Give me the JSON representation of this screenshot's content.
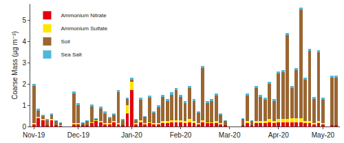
{
  "chart_data": {
    "type": "bar",
    "stacked": true,
    "grid": false,
    "legend": "top-left",
    "y_label": "Coarse Mass (µg m⁻³)",
    "ylim": [
      0,
      5.75
    ],
    "yticks": [
      0,
      1,
      2,
      3,
      4,
      5
    ],
    "categories": [
      "Nov-19",
      null,
      null,
      null,
      null,
      null,
      null,
      null,
      null,
      null,
      "Dec-19",
      null,
      null,
      null,
      null,
      null,
      null,
      null,
      null,
      null,
      null,
      null,
      "Jan-20",
      null,
      null,
      null,
      null,
      null,
      null,
      null,
      null,
      null,
      null,
      "Feb-20",
      null,
      null,
      null,
      null,
      null,
      null,
      null,
      null,
      null,
      null,
      "Mar-20",
      null,
      null,
      null,
      null,
      null,
      null,
      null,
      null,
      null,
      null,
      "Apr-20",
      null,
      null,
      null,
      null,
      null,
      null,
      null,
      null,
      null,
      "May-20",
      null,
      null,
      null
    ],
    "series": [
      {
        "name": "Ammonium Nitrate",
        "color": "#e3000f",
        "values": [
          0.1,
          0.4,
          0.3,
          0.05,
          0.3,
          0.05,
          0.03,
          null,
          null,
          0.1,
          0.1,
          0.05,
          0.05,
          0.15,
          0.25,
          0.2,
          0.1,
          0.1,
          0.2,
          0.1,
          0.05,
          0.6,
          1.7,
          0.1,
          0.2,
          0.1,
          0.15,
          0.1,
          0.1,
          0.15,
          0.15,
          0.2,
          0.2,
          0.2,
          0.15,
          0.2,
          0.15,
          0.1,
          0.2,
          0.15,
          0.15,
          0.15,
          0.1,
          0.05,
          null,
          null,
          null,
          0.05,
          0.15,
          0.05,
          0.15,
          0.15,
          0.15,
          0.2,
          0.15,
          0.2,
          0.2,
          0.2,
          0.2,
          0.2,
          0.2,
          0.15,
          0.15,
          0.1,
          0.15,
          0.1,
          null,
          0.05,
          0.05
        ]
      },
      {
        "name": "Ammonium Sulfate",
        "color": "#ffe600",
        "values": [
          0.05,
          0.05,
          0.05,
          0.02,
          0.05,
          0.02,
          0.02,
          null,
          null,
          0.05,
          0.05,
          0.02,
          0.02,
          0.05,
          0.05,
          0.05,
          0.05,
          0.05,
          0.05,
          0.05,
          0.02,
          0.4,
          0.4,
          0.05,
          0.1,
          0.05,
          0.05,
          0.05,
          0.05,
          0.1,
          0.1,
          0.1,
          0.1,
          0.1,
          0.1,
          0.15,
          0.1,
          0.05,
          0.1,
          0.05,
          0.05,
          0.1,
          0.05,
          0.02,
          null,
          null,
          null,
          0.02,
          0.1,
          0.02,
          0.1,
          0.1,
          0.1,
          0.15,
          0.1,
          0.15,
          0.15,
          0.15,
          0.2,
          0.2,
          0.2,
          0.1,
          0.1,
          0.05,
          0.1,
          0.05,
          null,
          0.02,
          0.02
        ]
      },
      {
        "name": "Soil",
        "color": "#9a6632",
        "values": [
          1.75,
          0.3,
          0.15,
          0.23,
          0.2,
          0.18,
          0.1,
          null,
          null,
          1.4,
          0.85,
          0.08,
          0.18,
          0.75,
          0.05,
          0.6,
          0.45,
          0.25,
          0.3,
          1.45,
          0.23,
          0.3,
          0.1,
          0.15,
          0.95,
          0.3,
          1.15,
          0.5,
          0.75,
          1.15,
          0.95,
          1.2,
          1.4,
          1.1,
          0.85,
          1.45,
          0.95,
          0.5,
          2.45,
          0.9,
          1.0,
          1.2,
          0.4,
          0.18,
          null,
          null,
          null,
          0.28,
          1.2,
          0.18,
          1.55,
          1.15,
          1.0,
          1.65,
          0.95,
          2.15,
          2.2,
          3.95,
          1.4,
          2.25,
          5.1,
          1.95,
          3.3,
          1.15,
          3.25,
          1.1,
          null,
          2.23,
          2.23
        ]
      },
      {
        "name": "Sea Salt",
        "color": "#4db8dc",
        "values": [
          0.1,
          0.1,
          0.05,
          0.05,
          0.05,
          0.05,
          0.05,
          null,
          null,
          0.1,
          0.1,
          0.05,
          0.05,
          0.1,
          0.05,
          0.1,
          0.1,
          0.05,
          0.05,
          0.1,
          0.05,
          0.05,
          0.1,
          0.05,
          0.1,
          0.05,
          0.1,
          0.05,
          0.1,
          0.1,
          0.1,
          0.1,
          0.1,
          0.1,
          0.1,
          0.1,
          0.1,
          0.05,
          0.1,
          0.1,
          0.1,
          0.1,
          0.05,
          0.05,
          null,
          null,
          null,
          0.05,
          0.1,
          0.05,
          0.1,
          0.1,
          0.1,
          0.1,
          0.1,
          0.1,
          0.1,
          0.1,
          0.1,
          0.1,
          0.1,
          0.1,
          0.1,
          0.1,
          0.1,
          0.1,
          null,
          0.1,
          0.1
        ]
      }
    ]
  }
}
